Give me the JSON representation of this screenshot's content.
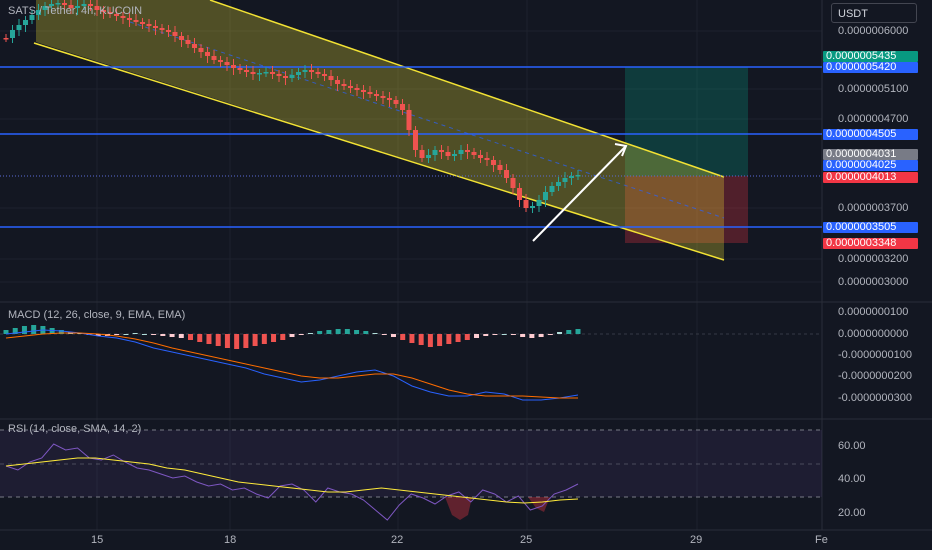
{
  "symbol_line": "SATS / Tether, 4h, KUCOIN",
  "currency": "USDT",
  "price_axis": [
    "0.0000006000",
    "0.0000005100",
    "0.0000004700",
    "0.0000003700",
    "0.0000003200",
    "0.0000003000"
  ],
  "price_tags": [
    {
      "text": "0.0000005435",
      "color": "#089981",
      "y": 56
    },
    {
      "text": "0.0000005420",
      "color": "#2962ff",
      "y": 67
    },
    {
      "text": "0.0000004505",
      "color": "#2962ff",
      "y": 134
    },
    {
      "text": "0.0000004031",
      "color": "#787b86",
      "y": 154
    },
    {
      "text": "0.0000004025",
      "color": "#2962ff",
      "y": 164
    },
    {
      "text": "0.0000004013",
      "color": "#f23645",
      "y": 177
    },
    {
      "text": "0.0000003505",
      "color": "#2962ff",
      "y": 227
    },
    {
      "text": "0.0000003348",
      "color": "#f23645",
      "y": 243
    }
  ],
  "macd": {
    "label": "MACD (12, 26, close, 9, EMA, EMA)",
    "axis": [
      "0.0000000100",
      "0.0000000000",
      "-0.0000000100",
      "-0.0000000200",
      "-0.0000000300"
    ]
  },
  "rsi": {
    "label": "RSI (14, close, SMA, 14, 2)",
    "axis": [
      "60.00",
      "40.00",
      "20.00"
    ]
  },
  "x_axis": [
    "15",
    "18",
    "22",
    "25",
    "29",
    "Fe"
  ],
  "colors": {
    "up": "#26a69a",
    "down": "#ef5350",
    "channel": "#f2e234",
    "hline": "#2962ff",
    "macd": "#2962ff",
    "signal": "#ff6d00",
    "rsi": "#7e57c2",
    "rsi_ma": "#ffeb3b"
  }
}
